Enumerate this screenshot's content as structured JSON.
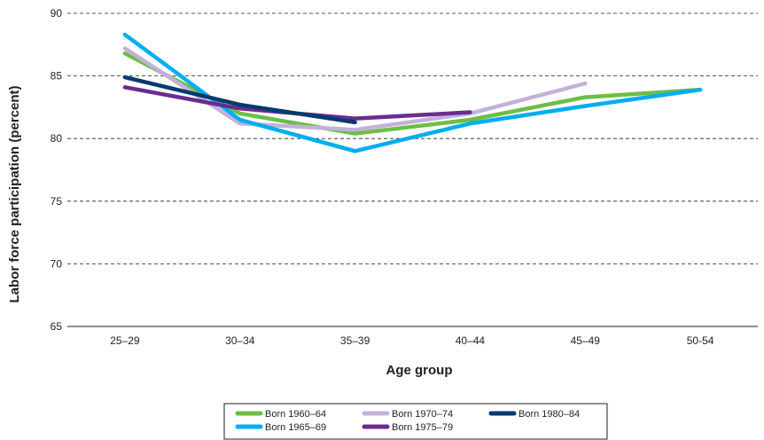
{
  "chart_data": {
    "type": "line",
    "title": "",
    "xlabel": "Age group",
    "ylabel": "Labor force participation (percent)",
    "categories": [
      "25–29",
      "30–34",
      "35–39",
      "40–44",
      "45–49",
      "50-54"
    ],
    "ylim": [
      65,
      90
    ],
    "yticks": [
      "65",
      "70",
      "75",
      "80",
      "85",
      "90"
    ],
    "grid": "horizontal dashed",
    "legend_position": "bottom",
    "series": [
      {
        "name": "Born 1960–64",
        "color": "#6cbe45",
        "values": [
          86.8,
          82.0,
          80.4,
          81.5,
          83.3,
          83.9
        ]
      },
      {
        "name": "Born 1965–69",
        "color": "#00aeef",
        "values": [
          88.3,
          81.5,
          79.0,
          81.2,
          82.6,
          83.9
        ]
      },
      {
        "name": "Born 1970–74",
        "color": "#c2b1d9",
        "values": [
          87.2,
          81.2,
          80.7,
          82.0,
          84.4,
          null
        ]
      },
      {
        "name": "Born 1975–79",
        "color": "#6a2c91",
        "values": [
          84.1,
          82.4,
          81.6,
          82.1,
          null,
          null
        ]
      },
      {
        "name": "Born 1980–84",
        "color": "#003a70",
        "values": [
          84.9,
          82.7,
          81.3,
          null,
          null,
          null
        ]
      }
    ],
    "legend_rows": [
      [
        "Born 1960–64",
        "Born 1970–74",
        "Born 1980–84"
      ],
      [
        "Born 1965–69",
        "Born 1975–79"
      ]
    ]
  }
}
